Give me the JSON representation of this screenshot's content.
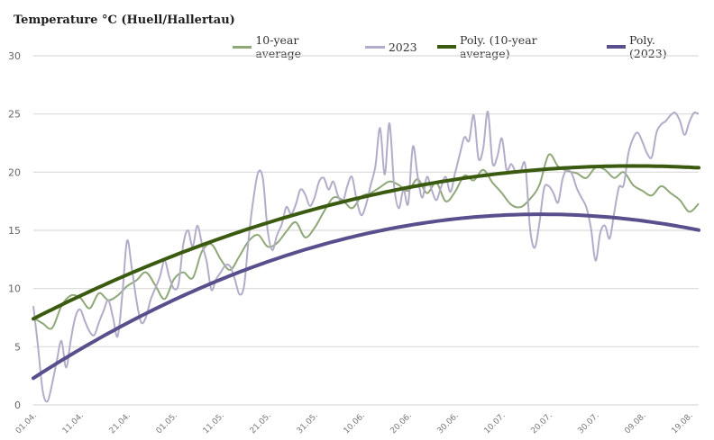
{
  "chart_data": {
    "type": "line",
    "title": "Temperature °C (Huell/Hallertau)",
    "ylim": [
      0,
      30
    ],
    "yticks": [
      0,
      5,
      10,
      15,
      20,
      25,
      30
    ],
    "grid": true,
    "legend_position": "top-right",
    "x_tick_labels": [
      "01.04.",
      "11.04.",
      "21.04.",
      "01.05.",
      "11.05.",
      "21.05.",
      "31.05.",
      "10.06.",
      "20.06.",
      "30.06.",
      "10.07.",
      "20.07.",
      "30.07.",
      "09.08.",
      "19.08."
    ],
    "x_days": [
      0,
      10,
      20,
      30,
      40,
      50,
      60,
      70,
      80,
      90,
      100,
      110,
      120,
      130,
      140
    ],
    "x_max": 142,
    "series": [
      {
        "name": "10-year average",
        "color": "#8fa878",
        "x": [
          0,
          2,
          4,
          6,
          8,
          10,
          12,
          14,
          16,
          18,
          20,
          22,
          24,
          26,
          28,
          30,
          32,
          34,
          36,
          38,
          40,
          42,
          44,
          46,
          48,
          50,
          52,
          54,
          56,
          58,
          60,
          62,
          64,
          66,
          68,
          70,
          72,
          74,
          76,
          78,
          80,
          82,
          84,
          86,
          88,
          90,
          92,
          94,
          96,
          98,
          100,
          102,
          104,
          106,
          108,
          110,
          112,
          114,
          116,
          118,
          120,
          122,
          124,
          126,
          128,
          130,
          132,
          134,
          136,
          138,
          140,
          142
        ],
        "y": [
          7.5,
          7.0,
          6.6,
          8.5,
          9.4,
          9.2,
          8.3,
          9.6,
          9.0,
          9.4,
          10.2,
          10.7,
          11.4,
          10.3,
          9.1,
          10.8,
          11.4,
          10.9,
          13.2,
          13.8,
          12.5,
          11.6,
          12.8,
          14.1,
          14.6,
          13.6,
          13.9,
          14.9,
          15.7,
          14.4,
          15.2,
          16.6,
          17.8,
          17.6,
          16.9,
          17.9,
          18.2,
          18.7,
          19.2,
          18.9,
          18.4,
          19.4,
          18.2,
          19.1,
          17.5,
          18.3,
          19.7,
          19.3,
          20.2,
          19.1,
          18.2,
          17.2,
          17.0,
          17.7,
          18.9,
          21.5,
          20.5,
          20.1,
          19.9,
          19.5,
          20.4,
          20.2,
          19.5,
          20.0,
          18.9,
          18.4,
          18.0,
          18.8,
          18.2,
          17.6,
          16.6,
          17.3
        ]
      },
      {
        "name": "2023",
        "color": "#b3acc9",
        "x": [
          0,
          1,
          2,
          3,
          4,
          5,
          6,
          7,
          8,
          9,
          10,
          11,
          12,
          13,
          14,
          15,
          16,
          17,
          18,
          19,
          20,
          21,
          22,
          23,
          24,
          25,
          26,
          27,
          28,
          29,
          30,
          31,
          32,
          33,
          34,
          35,
          36,
          37,
          38,
          39,
          40,
          41,
          42,
          43,
          44,
          45,
          46,
          47,
          48,
          49,
          50,
          51,
          52,
          53,
          54,
          55,
          56,
          57,
          58,
          59,
          60,
          61,
          62,
          63,
          64,
          65,
          66,
          67,
          68,
          69,
          70,
          71,
          72,
          73,
          74,
          75,
          76,
          77,
          78,
          79,
          80,
          81,
          82,
          83,
          84,
          85,
          86,
          87,
          88,
          89,
          90,
          91,
          92,
          93,
          94,
          95,
          96,
          97,
          98,
          99,
          100,
          101,
          102,
          103,
          104,
          105,
          106,
          107,
          108,
          109,
          110,
          111,
          112,
          113,
          114,
          115,
          116,
          117,
          118,
          119,
          120,
          121,
          122,
          123,
          124,
          125,
          126,
          127,
          128,
          129,
          130,
          131,
          132,
          133,
          134,
          135,
          136,
          137,
          138,
          139,
          140,
          141,
          142
        ],
        "y": [
          8.5,
          5.0,
          1.2,
          0.3,
          1.8,
          3.8,
          5.5,
          3.2,
          5.6,
          7.6,
          8.2,
          7.2,
          6.3,
          6.0,
          7.1,
          8.1,
          9.0,
          7.5,
          5.9,
          9.5,
          14.1,
          11.8,
          9.0,
          7.1,
          7.5,
          9.0,
          10.0,
          11.0,
          12.4,
          11.0,
          10.0,
          10.4,
          13.8,
          15.0,
          13.6,
          15.4,
          13.8,
          12.3,
          9.9,
          10.8,
          11.4,
          12.0,
          11.9,
          10.8,
          9.5,
          10.3,
          14.5,
          17.8,
          20.0,
          19.4,
          15.0,
          13.3,
          14.6,
          15.5,
          17.0,
          16.4,
          17.2,
          18.5,
          18.1,
          17.1,
          17.8,
          19.2,
          19.5,
          18.5,
          19.2,
          18.0,
          17.4,
          18.8,
          19.6,
          17.6,
          16.3,
          17.2,
          18.9,
          20.5,
          23.8,
          19.8,
          24.2,
          18.8,
          16.9,
          18.5,
          17.3,
          22.2,
          19.7,
          17.8,
          19.6,
          18.5,
          17.6,
          18.7,
          19.6,
          18.3,
          19.9,
          21.5,
          23.0,
          22.7,
          24.9,
          21.2,
          22.0,
          25.2,
          20.8,
          21.3,
          22.9,
          20.2,
          20.7,
          20.0,
          20.1,
          20.6,
          15.2,
          13.5,
          15.6,
          18.6,
          18.8,
          18.2,
          17.4,
          19.5,
          20.2,
          19.8,
          18.6,
          17.8,
          17.0,
          15.2,
          12.4,
          14.8,
          15.4,
          14.3,
          16.6,
          18.7,
          18.9,
          21.6,
          22.9,
          23.4,
          22.6,
          21.6,
          21.3,
          23.4,
          24.1,
          24.4,
          24.9,
          25.1,
          24.4,
          23.2,
          24.3,
          25.1,
          25.0
        ]
      },
      {
        "name": "Poly. (10-year average)",
        "color": "#3a5a10",
        "type": "trend",
        "poly": [
          7.4,
          0.205,
          -0.0008
        ]
      },
      {
        "name": "Poly. (2023)",
        "color": "#58508d",
        "type": "trend",
        "poly": [
          2.3,
          0.26,
          -0.0012
        ]
      }
    ]
  }
}
